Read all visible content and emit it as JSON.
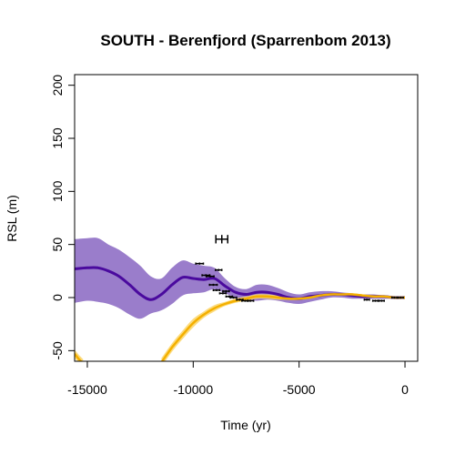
{
  "chart_data": {
    "type": "line",
    "title": "SOUTH - Berenfjord (Sparrenbom 2013)",
    "xlabel": "Time (yr)",
    "ylabel": "RSL (m)",
    "xlim": [
      -15600,
      600
    ],
    "ylim": [
      -60,
      210
    ],
    "xticks": [
      {
        "value": -15000,
        "label": "-15000"
      },
      {
        "value": -10000,
        "label": "-10000"
      },
      {
        "value": -5000,
        "label": "-5000"
      },
      {
        "value": 0,
        "label": "0"
      }
    ],
    "yticks": [
      {
        "value": -50,
        "label": "-50"
      },
      {
        "value": 0,
        "label": "0"
      },
      {
        "value": 50,
        "label": "50"
      },
      {
        "value": 100,
        "label": "100"
      },
      {
        "value": 150,
        "label": "150"
      },
      {
        "value": 200,
        "label": "200"
      }
    ],
    "colors": {
      "posterior": "#4a0a9e",
      "posterior_band": "#9a7dcb",
      "gia": "#f4b000",
      "gia_band": "#fcd66a",
      "data": "#000000"
    },
    "series": [
      {
        "role": "posterior-mean",
        "x": [
          -15600,
          -15000,
          -14500,
          -14000,
          -13500,
          -13000,
          -12500,
          -12000,
          -11500,
          -11000,
          -10500,
          -10000,
          -9500,
          -9000,
          -8500,
          -8000,
          -7500,
          -7000,
          -6500,
          -6000,
          -5500,
          -5000,
          -4500,
          -4000,
          -3500,
          -3000,
          -2500,
          -2000,
          -1500,
          -1000,
          -500,
          0
        ],
        "y": [
          27,
          28,
          28,
          25,
          20,
          12,
          3,
          -2,
          3,
          12,
          19,
          18,
          17,
          18,
          11,
          5,
          3,
          5,
          5,
          3,
          0,
          -1,
          1,
          2,
          3,
          3,
          2,
          1,
          1,
          1,
          0,
          0
        ],
        "lower": [
          -5,
          -3,
          -4,
          -6,
          -10,
          -16,
          -20,
          -15,
          -12,
          -6,
          2,
          4,
          5,
          8,
          4,
          0,
          -2,
          -3,
          -2,
          -3,
          -5,
          -6,
          -4,
          -2,
          0,
          0,
          -1,
          -1,
          -1,
          -1,
          -1,
          -1
        ],
        "upper": [
          55,
          56,
          56,
          50,
          45,
          38,
          30,
          20,
          18,
          28,
          35,
          32,
          30,
          28,
          18,
          10,
          8,
          12,
          12,
          9,
          5,
          3,
          5,
          6,
          6,
          5,
          4,
          3,
          3,
          2,
          1,
          1
        ]
      },
      {
        "role": "gia-prior",
        "x": [
          -15600,
          -15400,
          -15200
        ],
        "y": [
          -53,
          -58,
          -62
        ],
        "lower": [
          -57,
          -62,
          -66
        ],
        "upper": [
          -49,
          -54,
          -58
        ]
      },
      {
        "role": "gia-prior",
        "x": [
          -11500,
          -11000,
          -10500,
          -10000,
          -9500,
          -9000,
          -8500,
          -8000,
          -7500,
          -7000,
          -6500,
          -6000,
          -5500,
          -5000,
          -4500,
          -4000,
          -3500,
          -3000,
          -2500,
          -2000,
          -1500,
          -1000,
          -500,
          0
        ],
        "y": [
          -61,
          -47,
          -35,
          -24,
          -16,
          -10,
          -6,
          -3,
          -1,
          1,
          1,
          0,
          -1,
          -1,
          0,
          2,
          3,
          3,
          3,
          2,
          1,
          1,
          0,
          0
        ],
        "lower": [
          -65,
          -51,
          -39,
          -28,
          -19,
          -13,
          -8,
          -5,
          -3,
          -1,
          -1,
          -2,
          -2,
          -2,
          -1,
          1,
          2,
          2,
          2,
          1,
          0,
          0,
          -1,
          -1
        ],
        "upper": [
          -57,
          -43,
          -31,
          -20,
          -13,
          -7,
          -4,
          -1,
          1,
          3,
          3,
          2,
          0,
          0,
          1,
          3,
          4,
          4,
          4,
          3,
          2,
          2,
          1,
          1
        ]
      }
    ],
    "points": [
      {
        "x": -9700,
        "y": 32,
        "xerr": 180,
        "yerr": 1
      },
      {
        "x": -9400,
        "y": 21,
        "xerr": 180,
        "yerr": 1
      },
      {
        "x": -9200,
        "y": 20,
        "xerr": 180,
        "yerr": 1
      },
      {
        "x": -9050,
        "y": 12,
        "xerr": 180,
        "yerr": 1
      },
      {
        "x": -8900,
        "y": 7,
        "xerr": 150,
        "yerr": 1
      },
      {
        "x": -8800,
        "y": 26,
        "xerr": 150,
        "yerr": 1
      },
      {
        "x": -8600,
        "y": 4,
        "xerr": 150,
        "yerr": 1
      },
      {
        "x": -8450,
        "y": 6,
        "xerr": 150,
        "yerr": 1
      },
      {
        "x": -8300,
        "y": 1,
        "xerr": 150,
        "yerr": 1
      },
      {
        "x": -8100,
        "y": 0,
        "xerr": 150,
        "yerr": 1
      },
      {
        "x": -7800,
        "y": -2,
        "xerr": 150,
        "yerr": 1
      },
      {
        "x": -7550,
        "y": -3,
        "xerr": 150,
        "yerr": 1
      },
      {
        "x": -7300,
        "y": -3,
        "xerr": 150,
        "yerr": 1
      },
      {
        "x": -8650,
        "y": 55,
        "xerr": 280,
        "yerr": 4
      },
      {
        "x": -1800,
        "y": -2,
        "xerr": 120,
        "yerr": 1
      },
      {
        "x": -1400,
        "y": -3,
        "xerr": 120,
        "yerr": 1
      },
      {
        "x": -1100,
        "y": -3,
        "xerr": 120,
        "yerr": 1
      },
      {
        "x": -500,
        "y": 0,
        "xerr": 120,
        "yerr": 1
      },
      {
        "x": -200,
        "y": 0,
        "xerr": 120,
        "yerr": 1
      }
    ],
    "grid": false,
    "legend": "none"
  }
}
